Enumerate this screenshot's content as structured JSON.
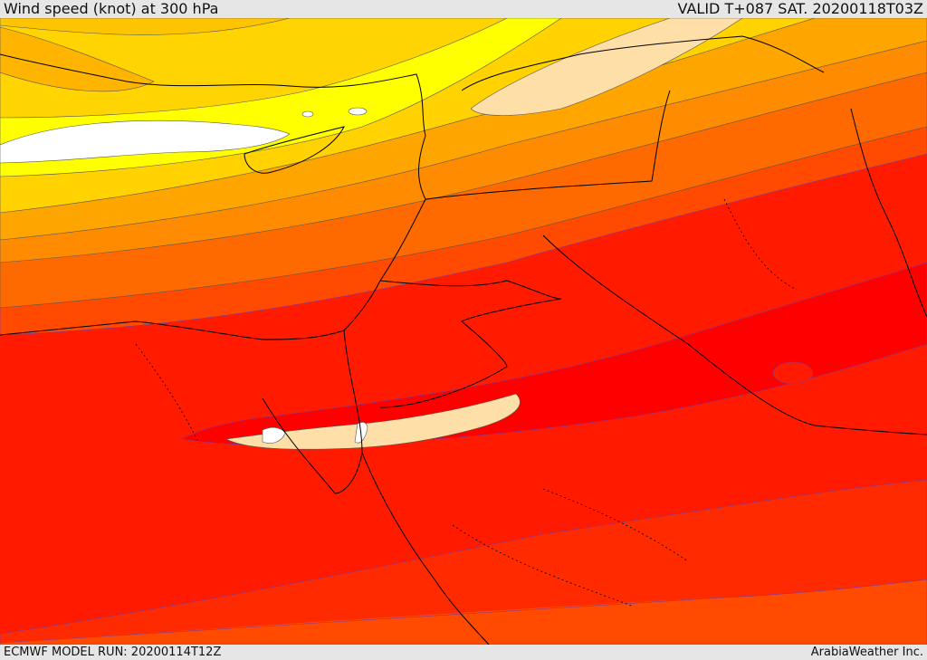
{
  "header": {
    "title": "Wind speed (knot) at 300 hPa",
    "valid": "VALID T+087 SAT. 20200118T03Z"
  },
  "footer": {
    "model_run": "ECMWF MODEL RUN: 20200114T12Z",
    "brand": "ArabiaWeather Inc."
  },
  "colors": {
    "band_1": "#ffc400",
    "band_2": "#ffd400",
    "band_3": "#ffff00",
    "band_4": "#ffd200",
    "band_5": "#ffa500",
    "band_6": "#ff8c00",
    "band_7": "#ff6a00",
    "band_8": "#ff4a00",
    "band_9": "#ff2a00",
    "band_10": "#ff0c00",
    "jet_core": "#ffdfa8",
    "max_core": "#ffffff",
    "coastline": "#000000",
    "contour": "#555555"
  }
}
